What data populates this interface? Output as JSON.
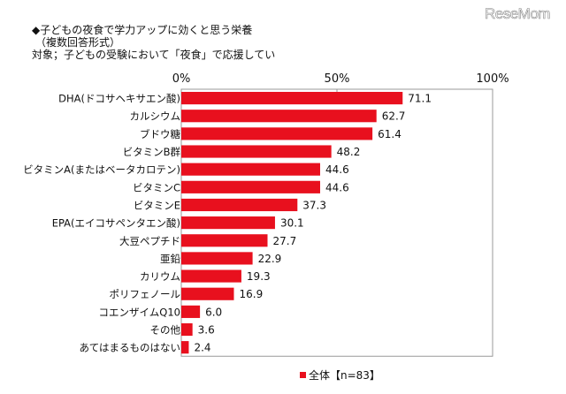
{
  "logo": "ReseMom",
  "title_line1": "◆子どもの夜食で学力アップに効くと思う栄養",
  "title_line2": "（複数回答形式）",
  "title_line3": "対象；子どもの受験において「夜食」で応援してい",
  "chart_data": {
    "type": "bar",
    "orientation": "horizontal",
    "categories": [
      "DHA(ドコサヘキサエン酸)",
      "カルシウム",
      "ブドウ糖",
      "ビタミンB群",
      "ビタミンA(またはベータカロテン)",
      "ビタミンC",
      "ビタミンE",
      "EPA(エイコサペンタエン酸)",
      "大豆ペプチド",
      "亜鉛",
      "カリウム",
      "ポリフェノール",
      "コエンザイムQ10",
      "その他",
      "あてはまるものはない"
    ],
    "series": [
      {
        "name": "全体【n=83】",
        "values": [
          71.1,
          62.7,
          61.4,
          48.2,
          44.6,
          44.6,
          37.3,
          30.1,
          27.7,
          22.9,
          19.3,
          16.9,
          6.0,
          3.6,
          2.4
        ]
      }
    ],
    "xlim": [
      0,
      100
    ],
    "xticks": [
      "0%",
      "50%",
      "100%"
    ],
    "legend_position": "bottom",
    "color": "#e8101e"
  }
}
